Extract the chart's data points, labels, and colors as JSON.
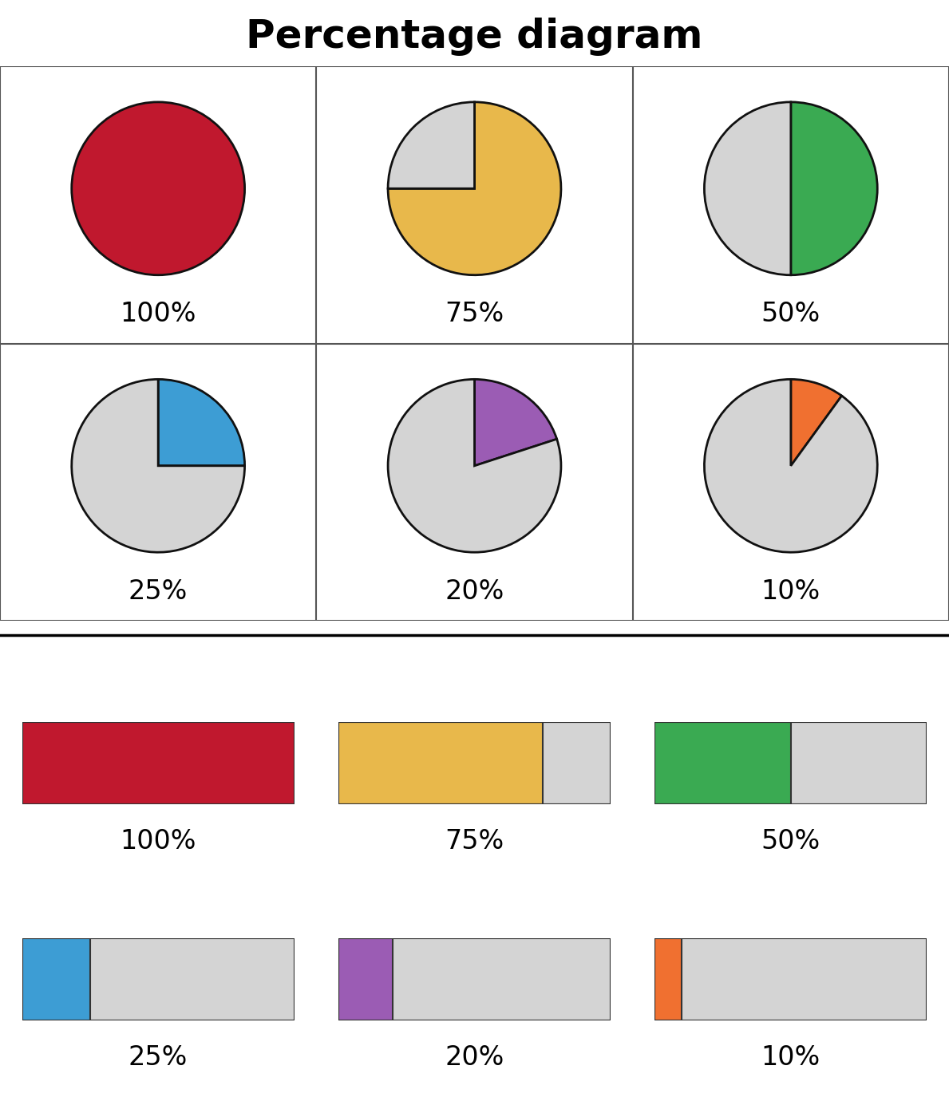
{
  "title": "Percentage diagram",
  "title_fontsize": 36,
  "background_color": "#ffffff",
  "pie_data": [
    {
      "pct": 100,
      "color": "#c0182e",
      "label": "100%",
      "row": 0,
      "col": 0
    },
    {
      "pct": 75,
      "color": "#e8b84b",
      "label": "75%",
      "row": 0,
      "col": 1
    },
    {
      "pct": 50,
      "color": "#3aaa52",
      "label": "50%",
      "row": 0,
      "col": 2
    },
    {
      "pct": 25,
      "color": "#3d9dd4",
      "label": "25%",
      "row": 1,
      "col": 0
    },
    {
      "pct": 20,
      "color": "#9b5cb4",
      "label": "20%",
      "row": 1,
      "col": 1
    },
    {
      "pct": 10,
      "color": "#f07030",
      "label": "10%",
      "row": 1,
      "col": 2
    }
  ],
  "bar_data": [
    {
      "pct": 100,
      "color": "#c0182e",
      "label": "100%",
      "row": 0,
      "col": 0
    },
    {
      "pct": 75,
      "color": "#e8b84b",
      "label": "75%",
      "row": 0,
      "col": 1
    },
    {
      "pct": 50,
      "color": "#3aaa52",
      "label": "50%",
      "row": 0,
      "col": 2
    },
    {
      "pct": 25,
      "color": "#3d9dd4",
      "label": "25%",
      "row": 1,
      "col": 0
    },
    {
      "pct": 20,
      "color": "#9b5cb4",
      "label": "20%",
      "row": 1,
      "col": 1
    },
    {
      "pct": 10,
      "color": "#f07030",
      "label": "10%",
      "row": 1,
      "col": 2
    }
  ],
  "gray_color": "#d4d4d4",
  "label_fontsize": 24,
  "pie_edge_color": "#111111",
  "pie_linewidth": 2.0,
  "bar_edge_color": "#333333",
  "bar_linewidth": 1.5,
  "grid_line_color": "#555555",
  "grid_linewidth": 1.5
}
